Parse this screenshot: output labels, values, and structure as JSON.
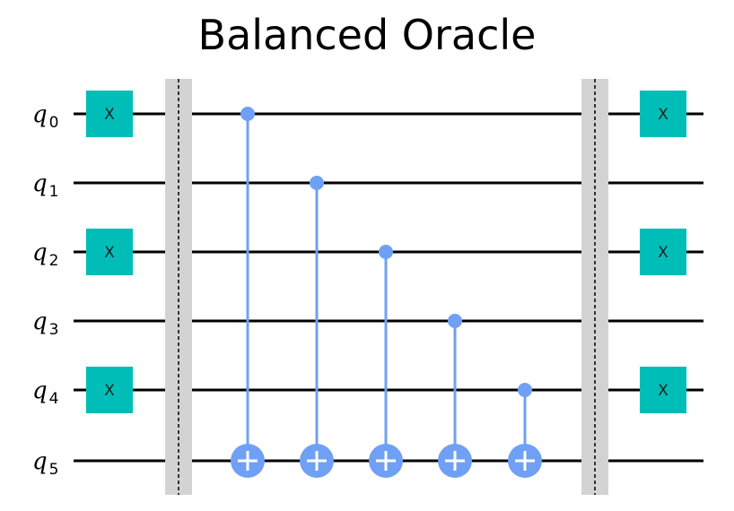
{
  "diagram": {
    "title": "Balanced Oracle",
    "qubits": [
      {
        "name": "q",
        "index": "0"
      },
      {
        "name": "q",
        "index": "1"
      },
      {
        "name": "q",
        "index": "2"
      },
      {
        "name": "q",
        "index": "3"
      },
      {
        "name": "q",
        "index": "4"
      },
      {
        "name": "q",
        "index": "5"
      }
    ],
    "gate_label": "X",
    "colors": {
      "x_gate": "#00bdb7",
      "cnot": "#6fa0f5",
      "barrier": "#d3d3d3",
      "wire": "#000000"
    },
    "columns": [
      {
        "type": "x",
        "targets": [
          0,
          2,
          4
        ]
      },
      {
        "type": "barrier"
      },
      {
        "type": "cnot",
        "control": 0,
        "target": 5
      },
      {
        "type": "cnot",
        "control": 1,
        "target": 5
      },
      {
        "type": "cnot",
        "control": 2,
        "target": 5
      },
      {
        "type": "cnot",
        "control": 3,
        "target": 5
      },
      {
        "type": "cnot",
        "control": 4,
        "target": 5
      },
      {
        "type": "barrier"
      },
      {
        "type": "x",
        "targets": [
          0,
          2,
          4
        ]
      }
    ]
  }
}
